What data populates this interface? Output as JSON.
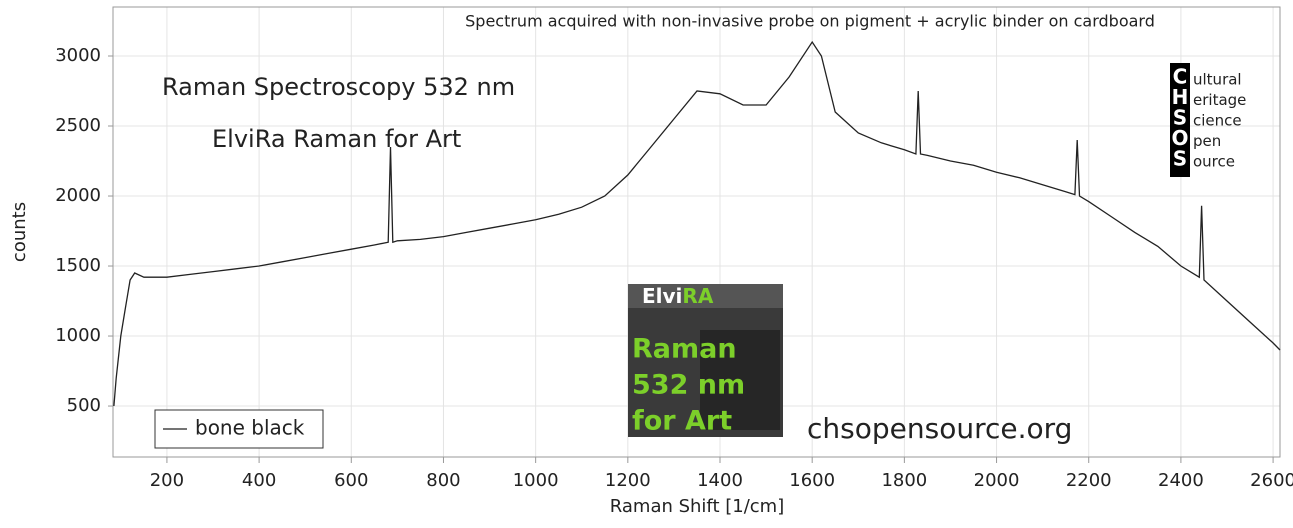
{
  "chart_data": {
    "type": "line",
    "annotations": [
      "Spectrum acquired with non-invasive probe on pigment + acrylic binder on cardboard",
      "Raman Spectroscopy 532 nm",
      "ElviRa Raman for Art",
      "chsopensource.org"
    ],
    "xlabel": "Raman Shift [1/cm]",
    "ylabel": "counts",
    "xlim": [
      83,
      2615
    ],
    "ylim": [
      136,
      3350
    ],
    "xticks": [
      200,
      400,
      600,
      800,
      1000,
      1200,
      1400,
      1600,
      1800,
      2000,
      2200,
      2400,
      2600
    ],
    "yticks": [
      500,
      1000,
      1500,
      2000,
      2500,
      3000
    ],
    "grid": true,
    "legend": "bottom-left",
    "series": [
      {
        "name": "bone black",
        "color": "#222222",
        "x": [
          85,
          90,
          100,
          110,
          120,
          130,
          150,
          200,
          250,
          300,
          350,
          400,
          450,
          500,
          550,
          600,
          650,
          680,
          685,
          690,
          700,
          750,
          800,
          850,
          900,
          950,
          1000,
          1050,
          1100,
          1150,
          1200,
          1250,
          1300,
          1350,
          1400,
          1450,
          1500,
          1550,
          1600,
          1620,
          1650,
          1700,
          1750,
          1800,
          1825,
          1830,
          1835,
          1850,
          1900,
          1950,
          2000,
          2050,
          2100,
          2150,
          2170,
          2175,
          2180,
          2200,
          2250,
          2300,
          2350,
          2400,
          2440,
          2445,
          2450,
          2500,
          2550,
          2600,
          2615
        ],
        "values": [
          500,
          700,
          1000,
          1200,
          1400,
          1450,
          1420,
          1420,
          1440,
          1460,
          1480,
          1500,
          1530,
          1560,
          1590,
          1620,
          1650,
          1670,
          2350,
          1670,
          1680,
          1690,
          1710,
          1740,
          1770,
          1800,
          1830,
          1870,
          1920,
          2000,
          2150,
          2350,
          2550,
          2750,
          2730,
          2650,
          2650,
          2850,
          3100,
          3000,
          2600,
          2450,
          2380,
          2330,
          2300,
          2750,
          2300,
          2290,
          2250,
          2220,
          2170,
          2130,
          2080,
          2030,
          2010,
          2400,
          2000,
          1960,
          1850,
          1740,
          1640,
          1500,
          1420,
          1930,
          1400,
          1250,
          1100,
          950,
          900
        ]
      }
    ]
  },
  "logo": {
    "letters": [
      "C",
      "H",
      "S",
      "O",
      "S"
    ],
    "words": [
      "ultural",
      "eritage",
      "cience",
      "pen",
      "ource"
    ]
  },
  "badge": {
    "title_a": "Elvi",
    "title_b": "RA",
    "lines": [
      "Raman",
      "532 nm",
      "for Art"
    ]
  }
}
